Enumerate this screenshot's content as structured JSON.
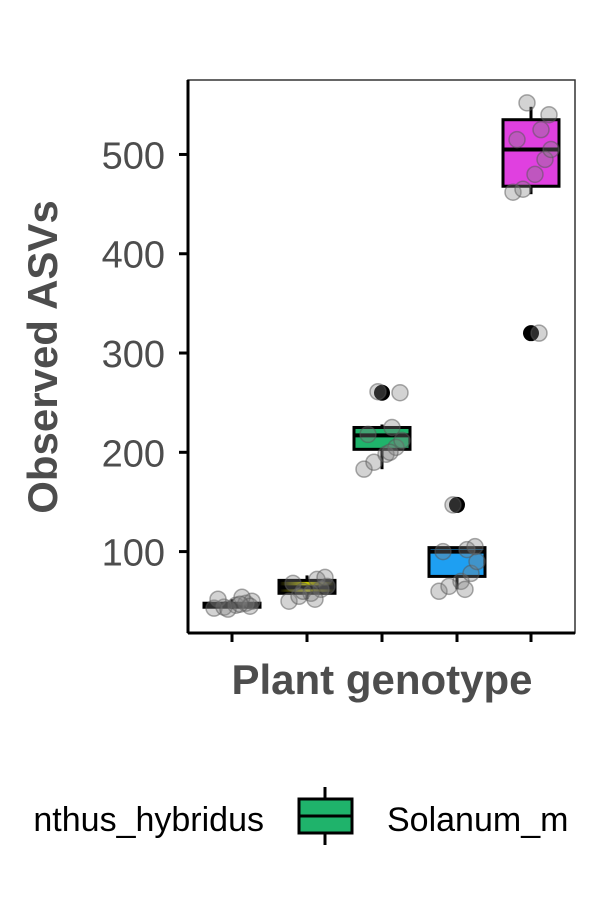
{
  "chart_data": {
    "type": "box",
    "title": "",
    "xlabel": "Plant genotype",
    "ylabel": "Observed ASVs",
    "ylim": [
      18,
      575
    ],
    "yticks": [
      100,
      200,
      300,
      400,
      500
    ],
    "grid": false,
    "legend_position": "bottom",
    "legend_entries": [
      {
        "label": "Amaranthus_hybridus",
        "visible_text": "nthus_hybridus",
        "color": "#a3a500"
      },
      {
        "label": "Solanum_m",
        "visible_text": "Solanum_m",
        "color": "#1fb36b"
      }
    ],
    "groups": [
      {
        "fill": "#6a6a00",
        "gradient": true,
        "q1": 44,
        "median": 46,
        "q3": 48,
        "whisker_low": 42,
        "whisker_high": 52,
        "outliers": [],
        "points": [
          43,
          44,
          46,
          48,
          50,
          52,
          54,
          45,
          42,
          47
        ]
      },
      {
        "fill": "#c8c800",
        "gradient": true,
        "q1": 58,
        "median": 64,
        "q3": 71,
        "whisker_low": 52,
        "whisker_high": 76,
        "outliers": [],
        "points": [
          50,
          55,
          58,
          62,
          65,
          68,
          72,
          74,
          60,
          52
        ]
      },
      {
        "fill": "#1fb36b",
        "gradient": false,
        "q1": 203,
        "median": 217,
        "q3": 225,
        "whisker_low": 183,
        "whisker_high": 228,
        "outliers": [
          260
        ],
        "points": [
          183,
          190,
          198,
          205,
          212,
          218,
          225,
          260,
          261,
          200
        ]
      },
      {
        "fill": "#1e9ff2",
        "gradient": false,
        "q1": 75,
        "median": 100,
        "q3": 104,
        "whisker_low": 62,
        "whisker_high": 104,
        "outliers": [
          147
        ],
        "points": [
          60,
          65,
          70,
          78,
          90,
          100,
          102,
          105,
          147,
          62
        ]
      },
      {
        "fill": "#e040e0",
        "gradient": false,
        "q1": 468,
        "median": 505,
        "q3": 535,
        "whisker_low": 460,
        "whisker_high": 548,
        "outliers": [
          320
        ],
        "points": [
          462,
          465,
          480,
          495,
          505,
          515,
          525,
          540,
          552,
          320
        ]
      }
    ]
  }
}
